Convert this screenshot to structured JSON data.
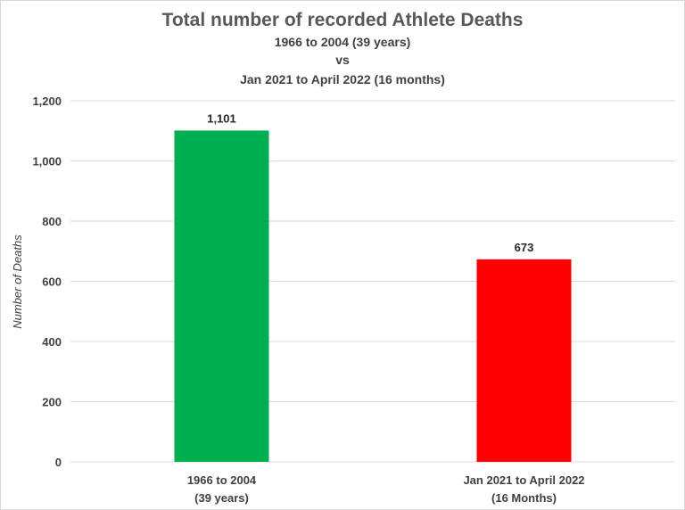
{
  "chart_data": {
    "type": "bar",
    "title": "Total number of recorded Athlete Deaths",
    "subtitle_lines": [
      "1966 to 2004 (39 years)",
      "vs",
      "Jan 2021 to April 2022 (16 months)"
    ],
    "xlabel": "",
    "ylabel": "Number of Deaths",
    "ylim": [
      0,
      1200
    ],
    "yticks": [
      0,
      200,
      400,
      600,
      800,
      1000,
      1200
    ],
    "ytick_labels": [
      "0",
      "200",
      "400",
      "600",
      "800",
      "1,000",
      "1,200"
    ],
    "grid": true,
    "legend": "none",
    "categories": [
      {
        "line1": "1966 to 2004",
        "line2": "(39 years)"
      },
      {
        "line1": "Jan 2021 to April 2022",
        "line2": "(16 Months)"
      }
    ],
    "values": [
      1101,
      673
    ],
    "data_labels": [
      "1,101",
      "673"
    ],
    "bar_colors": [
      "#00b050",
      "#ff0000"
    ]
  }
}
